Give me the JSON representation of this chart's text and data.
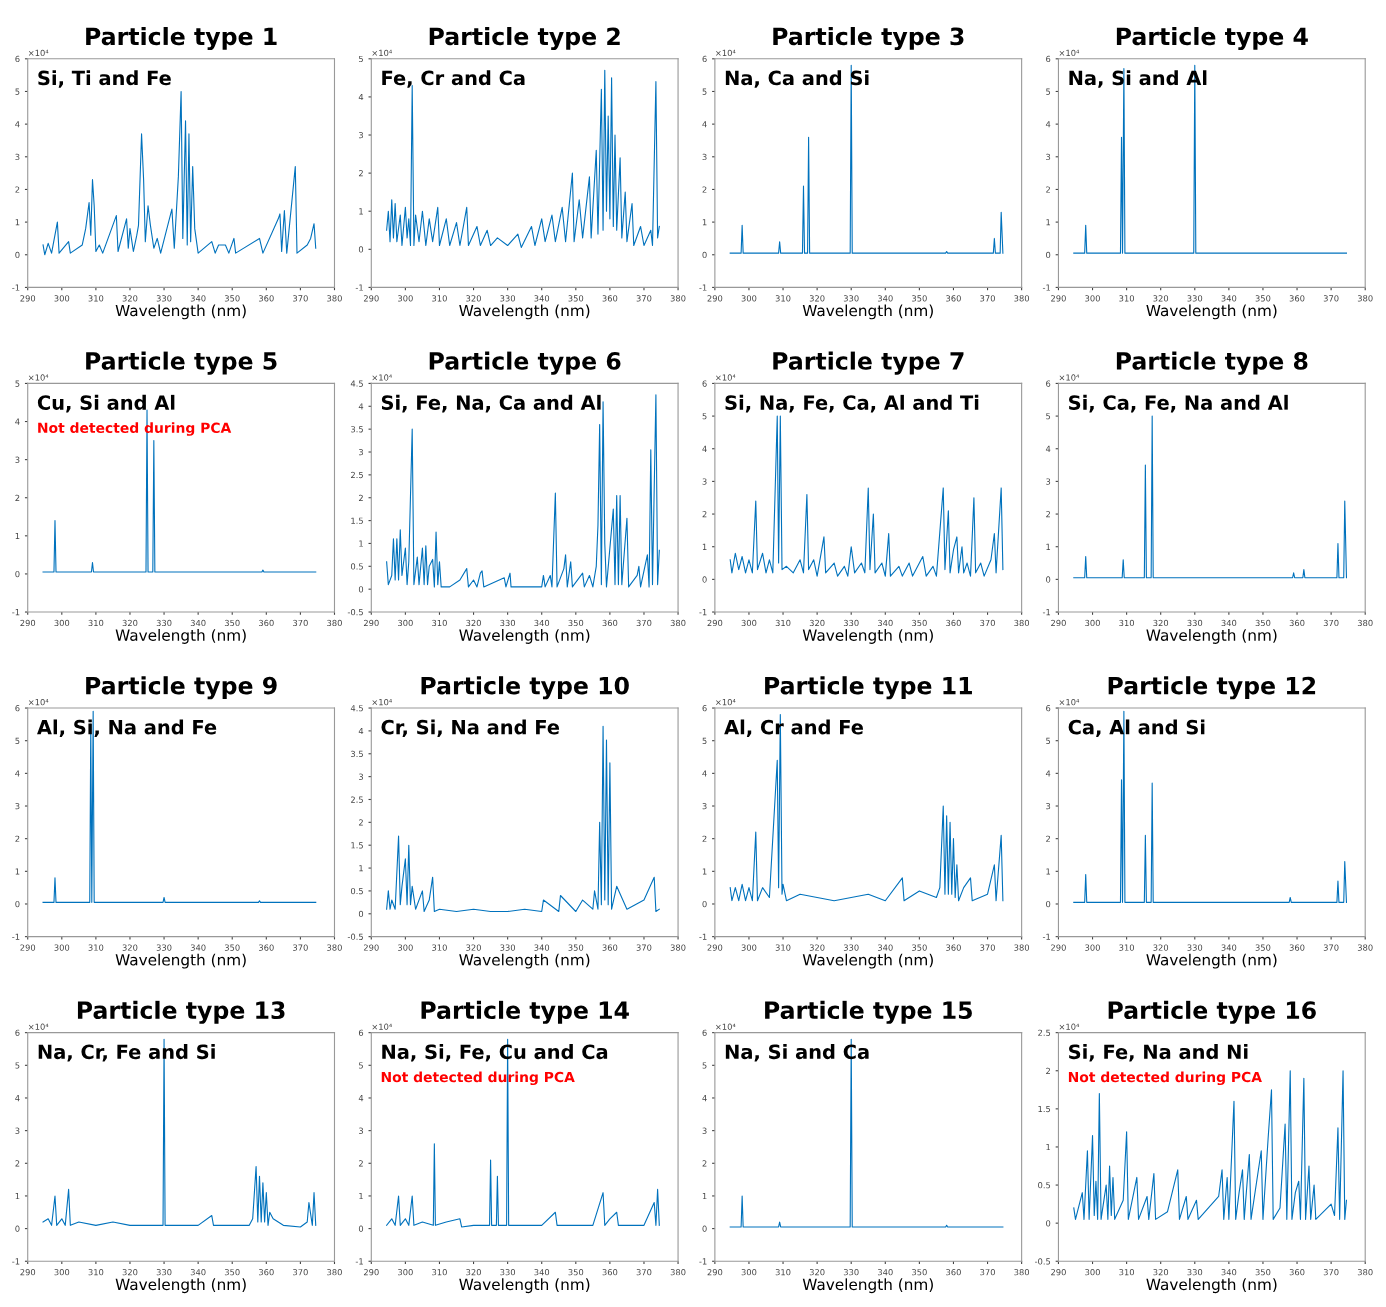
{
  "chart_data": [
    {
      "type": "line",
      "title": "Particle type 1",
      "subtitle": "Si, Ti and Fe",
      "xlabel": "Wavelength (nm)",
      "annotations": [
        "×10⁴"
      ],
      "color": "#0072bd",
      "xlim": [
        290,
        380
      ],
      "xticks": [
        290,
        300,
        310,
        320,
        330,
        340,
        350,
        360,
        370,
        380
      ],
      "ylim": [
        -1,
        6
      ],
      "yticks": [
        -1,
        0,
        1,
        2,
        3,
        4,
        5,
        6
      ],
      "grid": false,
      "legend": false,
      "x": [
        294.5,
        295,
        296,
        297,
        298.7,
        299.2,
        302,
        302.5,
        306,
        307,
        307.5,
        308,
        308.5,
        309,
        309.5,
        310,
        311,
        312,
        316,
        316.5,
        319,
        319.5,
        320,
        321,
        322,
        322.5,
        323.4,
        324,
        324.5,
        325.3,
        326,
        327,
        328,
        329,
        332.3,
        333,
        334.2,
        335,
        335.5,
        336.3,
        336.8,
        337.3,
        337.8,
        338.4,
        339,
        340,
        344,
        345,
        346,
        348,
        349,
        350.5,
        351,
        358,
        359,
        363.5,
        364,
        364.5,
        365.3,
        366,
        368.5,
        369,
        372,
        373,
        374,
        374.5
      ],
      "values": [
        0.3,
        0,
        0.35,
        0.05,
        1.0,
        0.05,
        0.4,
        0.05,
        0.3,
        0.8,
        1.2,
        1.6,
        0.6,
        2.3,
        1.5,
        0.1,
        0.3,
        0.05,
        1.2,
        0.1,
        1.1,
        0.2,
        0.8,
        0.1,
        0.6,
        0.9,
        3.7,
        2.3,
        0.4,
        1.5,
        0.9,
        0.2,
        0.5,
        0.05,
        1.4,
        0.2,
        2.4,
        5.0,
        0.5,
        4.1,
        0.3,
        3.7,
        0.4,
        2.7,
        0.8,
        0.05,
        0.4,
        0.05,
        0.3,
        0.3,
        0.05,
        0.5,
        0.05,
        0.5,
        0.05,
        1.1,
        1.25,
        0.1,
        1.35,
        0.05,
        2.7,
        0.05,
        0.3,
        0.5,
        0.95,
        0.2
      ]
    },
    {
      "type": "line",
      "title": "Particle type 2",
      "subtitle": "Fe, Cr and Ca",
      "xlabel": "Wavelength (nm)",
      "annotations": [
        "×10⁴"
      ],
      "color": "#0072bd",
      "xlim": [
        290,
        380
      ],
      "xticks": [
        290,
        300,
        310,
        320,
        330,
        340,
        350,
        360,
        370,
        380
      ],
      "ylim": [
        -1,
        5
      ],
      "yticks": [
        -1,
        0,
        1,
        2,
        3,
        4,
        5
      ],
      "grid": false,
      "legend": false,
      "x": [
        294.5,
        295,
        295.5,
        296,
        296.5,
        297,
        297.5,
        298.5,
        299,
        300,
        300.5,
        301,
        301.5,
        302,
        302.5,
        303,
        304,
        305,
        306,
        307,
        308,
        309.5,
        310,
        312,
        313,
        315,
        316,
        318,
        318.5,
        321,
        322,
        324,
        325,
        327,
        330,
        333,
        334,
        337,
        338,
        340,
        341,
        343,
        344,
        346,
        347,
        349,
        349.5,
        351,
        352,
        354,
        354.5,
        356,
        356.5,
        357.5,
        358,
        358.5,
        359,
        359.5,
        360,
        360.5,
        361,
        361.5,
        362,
        363,
        363.5,
        364.5,
        365,
        366.5,
        367,
        369,
        370,
        372,
        372.5,
        373.5,
        374,
        374.5
      ],
      "values": [
        0.5,
        1.0,
        0.2,
        1.3,
        0.3,
        1.2,
        0.2,
        0.9,
        0.1,
        1.1,
        0.3,
        0.8,
        0.1,
        4.3,
        0.1,
        0.9,
        0.2,
        1.0,
        0.1,
        0.8,
        0.2,
        1.1,
        0.1,
        0.8,
        0.1,
        0.7,
        0.1,
        1.1,
        0.1,
        0.6,
        0.1,
        0.5,
        0.1,
        0.3,
        0.1,
        0.4,
        0.05,
        0.6,
        0.1,
        0.8,
        0.2,
        0.9,
        0.2,
        1.1,
        0.2,
        2.0,
        0.2,
        1.3,
        0.3,
        1.9,
        0.3,
        2.6,
        0.4,
        4.2,
        0.5,
        4.7,
        1.0,
        3.5,
        0.8,
        4.5,
        0.6,
        3.0,
        0.5,
        2.4,
        0.3,
        1.5,
        0.2,
        1.2,
        0.1,
        0.6,
        0.1,
        0.5,
        0.1,
        4.4,
        0.3,
        0.6
      ]
    },
    {
      "type": "line",
      "title": "Particle type 3",
      "subtitle": "Na, Ca and Si",
      "xlabel": "Wavelength (nm)",
      "annotations": [
        "×10⁴"
      ],
      "color": "#0072bd",
      "xlim": [
        290,
        380
      ],
      "xticks": [
        290,
        300,
        310,
        320,
        330,
        340,
        350,
        360,
        370,
        380
      ],
      "ylim": [
        -1,
        6
      ],
      "yticks": [
        -1,
        0,
        1,
        2,
        3,
        4,
        5,
        6
      ],
      "grid": false,
      "legend": false,
      "x": [
        294.5,
        297.7,
        298,
        298.3,
        308.7,
        309,
        309.3,
        315.7,
        316,
        316.3,
        317.2,
        317.5,
        317.8,
        329.7,
        330,
        330.3,
        357.7,
        358,
        358.3,
        371.7,
        372,
        372.3,
        373.7,
        374,
        374.5
      ],
      "values": [
        0.05,
        0.05,
        0.9,
        0.05,
        0.05,
        0.4,
        0.05,
        0.05,
        2.1,
        0.05,
        0.05,
        3.6,
        0.05,
        0.05,
        5.8,
        0.05,
        0.05,
        0.1,
        0.05,
        0.05,
        0.5,
        0.05,
        0.05,
        1.3,
        0.05
      ]
    },
    {
      "type": "line",
      "title": "Particle type 4",
      "subtitle": "Na, Si and Al",
      "xlabel": "Wavelength (nm)",
      "annotations": [
        "×10⁴"
      ],
      "color": "#0072bd",
      "xlim": [
        290,
        380
      ],
      "xticks": [
        290,
        300,
        310,
        320,
        330,
        340,
        350,
        360,
        370,
        380
      ],
      "ylim": [
        -1,
        6
      ],
      "yticks": [
        -1,
        0,
        1,
        2,
        3,
        4,
        5,
        6
      ],
      "grid": false,
      "legend": false,
      "x": [
        294.5,
        297.7,
        298,
        298.3,
        308.2,
        308.5,
        308.8,
        309.2,
        309.5,
        329.7,
        330,
        330.3,
        374.5
      ],
      "values": [
        0.05,
        0.05,
        0.9,
        0.05,
        0.05,
        3.6,
        0.05,
        5.7,
        0.05,
        0.05,
        5.8,
        0.05,
        0.05
      ]
    },
    {
      "type": "line",
      "title": "Particle type 5",
      "subtitle": "Cu, Si and Al",
      "xlabel": "Wavelength (nm)",
      "annotations": [
        "×10⁴",
        "Not detected during PCA"
      ],
      "color": "#0072bd",
      "xlim": [
        290,
        380
      ],
      "xticks": [
        290,
        300,
        310,
        320,
        330,
        340,
        350,
        360,
        370,
        380
      ],
      "ylim": [
        -1,
        5
      ],
      "yticks": [
        -1,
        0,
        1,
        2,
        3,
        4,
        5
      ],
      "grid": false,
      "legend": false,
      "x": [
        294.5,
        297.7,
        298,
        298.3,
        308.7,
        309,
        309.3,
        324.7,
        325,
        325.3,
        326.7,
        327,
        327.3,
        358.7,
        359,
        359.3,
        374.5
      ],
      "values": [
        0.05,
        0.05,
        1.4,
        0.05,
        0.05,
        0.3,
        0.05,
        0.05,
        4.3,
        0.05,
        0.05,
        3.5,
        0.05,
        0.05,
        0.1,
        0.05,
        0.05
      ]
    },
    {
      "type": "line",
      "title": "Particle type 6",
      "subtitle": "Si, Fe, Na, Ca and Al",
      "xlabel": "Wavelength (nm)",
      "annotations": [
        "×10⁴"
      ],
      "color": "#0072bd",
      "xlim": [
        290,
        380
      ],
      "xticks": [
        290,
        300,
        310,
        320,
        330,
        340,
        350,
        360,
        370,
        380
      ],
      "ylim": [
        -0.5,
        4.5
      ],
      "yticks": [
        -0.5,
        0,
        0.5,
        1,
        1.5,
        2,
        2.5,
        3,
        3.5,
        4,
        4.5
      ],
      "grid": false,
      "legend": false,
      "x": [
        294.5,
        295,
        296,
        296.5,
        297,
        297.5,
        298,
        298.5,
        299,
        300,
        300.5,
        301,
        302,
        302.5,
        303.5,
        304,
        305,
        305.5,
        306,
        306.5,
        307,
        308,
        308.5,
        309,
        309.5,
        310,
        310.5,
        313,
        316,
        318,
        318.5,
        320,
        321,
        322,
        322.5,
        323,
        329,
        329.5,
        330.7,
        331,
        340,
        340.5,
        341,
        342.5,
        343,
        344,
        344.5,
        346.5,
        347,
        347.5,
        348.5,
        349,
        352,
        352.5,
        354,
        355,
        356,
        356.5,
        357,
        357.5,
        358,
        358.5,
        359,
        361,
        361.5,
        362,
        362.5,
        363,
        363.5,
        365,
        365.5,
        368,
        368.5,
        369,
        371,
        371.5,
        372,
        372.5,
        373.5,
        374,
        374.5
      ],
      "values": [
        0.6,
        0.1,
        0.3,
        1.1,
        0.2,
        1.1,
        0.2,
        1.3,
        0.3,
        0.9,
        0.1,
        0.6,
        3.5,
        0.1,
        0.7,
        0.1,
        0.9,
        0.1,
        0.95,
        0.1,
        0.5,
        0.65,
        0.05,
        1.25,
        0.1,
        0.6,
        0.05,
        0.05,
        0.2,
        0.45,
        0.05,
        0.2,
        0.05,
        0.35,
        0.4,
        0.05,
        0.25,
        0.05,
        0.35,
        0.05,
        0.05,
        0.3,
        0.05,
        0.3,
        0.05,
        2.1,
        0.05,
        0.45,
        0.75,
        0.05,
        0.6,
        0.05,
        0.35,
        0.05,
        0.3,
        0.05,
        0.5,
        1.4,
        3.6,
        0.1,
        4.1,
        1.0,
        0.05,
        1.75,
        0.1,
        2.05,
        0.1,
        2.05,
        0.1,
        1.55,
        0.05,
        0.3,
        0.5,
        0.05,
        0.75,
        0.05,
        3.05,
        0.1,
        4.25,
        0.1,
        0.85
      ]
    },
    {
      "type": "line",
      "title": "Particle type 7",
      "subtitle": "Si, Na, Fe, Ca, Al and Ti",
      "xlabel": "Wavelength (nm)",
      "annotations": [
        "×10⁴"
      ],
      "color": "#0072bd",
      "xlim": [
        290,
        380
      ],
      "xticks": [
        290,
        300,
        310,
        320,
        330,
        340,
        350,
        360,
        370,
        380
      ],
      "ylim": [
        -1,
        6
      ],
      "yticks": [
        -1,
        0,
        1,
        2,
        3,
        4,
        5,
        6
      ],
      "grid": false,
      "legend": false,
      "x": [
        294.5,
        295,
        296,
        297,
        298,
        299,
        300,
        301,
        302,
        302.5,
        304,
        305,
        306,
        307,
        308.3,
        308.7,
        309.2,
        309.7,
        311,
        313,
        315,
        316,
        317,
        317.5,
        319,
        320,
        322,
        322.5,
        325,
        326,
        328,
        329,
        330,
        331,
        333,
        334,
        335,
        335.5,
        336.5,
        337,
        339,
        340,
        341,
        341.5,
        344,
        345,
        347,
        348,
        351,
        352,
        354,
        355,
        357,
        357.5,
        358.5,
        359,
        360,
        361,
        361.5,
        362.5,
        363,
        364,
        365,
        366,
        366.5,
        368,
        369,
        371,
        372,
        372.5,
        374,
        374.5
      ],
      "values": [
        0.6,
        0.2,
        0.8,
        0.3,
        0.7,
        0.2,
        0.6,
        0.2,
        2.4,
        0.3,
        0.8,
        0.2,
        0.6,
        0.2,
        5.0,
        0.5,
        5.0,
        0.3,
        0.4,
        0.2,
        0.6,
        0.2,
        2.6,
        0.3,
        0.6,
        0.1,
        1.3,
        0.2,
        0.5,
        0.1,
        0.4,
        0.1,
        1.0,
        0.2,
        0.5,
        0.2,
        2.8,
        0.3,
        2.0,
        0.2,
        0.5,
        0.1,
        1.4,
        0.1,
        0.4,
        0.1,
        0.5,
        0.1,
        0.7,
        0.1,
        0.4,
        0.1,
        2.8,
        0.3,
        2.1,
        0.2,
        0.9,
        1.3,
        0.2,
        1.0,
        0.2,
        0.5,
        0.1,
        2.5,
        0.2,
        0.5,
        0.1,
        0.6,
        1.4,
        0.2,
        2.8,
        0.3
      ]
    },
    {
      "type": "line",
      "title": "Particle type 8",
      "subtitle": "Si, Ca, Fe, Na and Al",
      "xlabel": "Wavelength (nm)",
      "annotations": [
        "×10⁴"
      ],
      "color": "#0072bd",
      "xlim": [
        290,
        380
      ],
      "xticks": [
        290,
        300,
        310,
        320,
        330,
        340,
        350,
        360,
        370,
        380
      ],
      "ylim": [
        -1,
        6
      ],
      "yticks": [
        -1,
        0,
        1,
        2,
        3,
        4,
        5,
        6
      ],
      "grid": false,
      "legend": false,
      "x": [
        294.5,
        297.7,
        298,
        298.3,
        308.7,
        309,
        309.3,
        315.2,
        315.5,
        315.8,
        317.2,
        317.5,
        317.8,
        358.7,
        359,
        359.3,
        361.7,
        362,
        362.3,
        371.7,
        372,
        372.3,
        373.7,
        374,
        374.5
      ],
      "values": [
        0.05,
        0.05,
        0.7,
        0.05,
        0.05,
        0.6,
        0.05,
        0.05,
        3.5,
        0.05,
        0.05,
        5.0,
        0.05,
        0.05,
        0.2,
        0.05,
        0.05,
        0.3,
        0.05,
        0.05,
        1.1,
        0.05,
        0.05,
        2.4,
        0.05
      ]
    },
    {
      "type": "line",
      "title": "Particle type 9",
      "subtitle": "Al, Si, Na and Fe",
      "xlabel": "Wavelength (nm)",
      "annotations": [
        "×10⁴"
      ],
      "color": "#0072bd",
      "xlim": [
        290,
        380
      ],
      "xticks": [
        290,
        300,
        310,
        320,
        330,
        340,
        350,
        360,
        370,
        380
      ],
      "ylim": [
        -1,
        6
      ],
      "yticks": [
        -1,
        0,
        1,
        2,
        3,
        4,
        5,
        6
      ],
      "grid": false,
      "legend": false,
      "x": [
        294.5,
        297.7,
        298,
        298.3,
        308.2,
        308.5,
        308.8,
        309.2,
        309.5,
        329.7,
        330,
        330.3,
        357.7,
        358,
        358.3,
        374.5
      ],
      "values": [
        0.05,
        0.05,
        0.8,
        0.05,
        0.05,
        5.5,
        0.05,
        5.9,
        0.05,
        0.05,
        0.2,
        0.05,
        0.05,
        0.1,
        0.05,
        0.05
      ]
    },
    {
      "type": "line",
      "title": "Particle type 10",
      "subtitle": "Cr, Si, Na and Fe",
      "xlabel": "Wavelength (nm)",
      "annotations": [
        "×10⁴"
      ],
      "color": "#0072bd",
      "xlim": [
        290,
        380
      ],
      "xticks": [
        290,
        300,
        310,
        320,
        330,
        340,
        350,
        360,
        370,
        380
      ],
      "ylim": [
        -0.5,
        4.5
      ],
      "yticks": [
        -0.5,
        0,
        0.5,
        1,
        1.5,
        2,
        2.5,
        3,
        3.5,
        4,
        4.5
      ],
      "grid": false,
      "legend": false,
      "x": [
        294.5,
        295,
        295.5,
        296,
        297,
        298,
        298.5,
        299,
        300,
        300.5,
        301,
        301.5,
        302,
        303,
        305,
        305.5,
        307,
        308,
        308.5,
        310,
        315,
        320,
        325,
        330,
        335,
        340,
        340.5,
        345,
        345.5,
        350,
        352,
        355,
        355.5,
        356.5,
        357,
        357.5,
        358,
        358.5,
        359,
        359.5,
        360,
        360.5,
        362,
        365,
        370,
        373,
        373.5,
        374.5
      ],
      "values": [
        0.1,
        0.5,
        0.1,
        0.3,
        0.1,
        1.7,
        0.2,
        0.6,
        1.2,
        0.2,
        1.5,
        0.2,
        0.6,
        0.1,
        0.5,
        0.05,
        0.3,
        0.8,
        0.05,
        0.1,
        0.05,
        0.1,
        0.05,
        0.05,
        0.1,
        0.05,
        0.3,
        0.05,
        0.4,
        0.05,
        0.3,
        0.1,
        0.5,
        0.1,
        2.0,
        0.2,
        4.1,
        0.3,
        3.8,
        0.2,
        3.3,
        0.1,
        0.6,
        0.1,
        0.3,
        0.8,
        0.05,
        0.1
      ]
    },
    {
      "type": "line",
      "title": "Particle type 11",
      "subtitle": "Al, Cr and Fe",
      "xlabel": "Wavelength (nm)",
      "annotations": [
        "×10⁴"
      ],
      "color": "#0072bd",
      "xlim": [
        290,
        380
      ],
      "xticks": [
        290,
        300,
        310,
        320,
        330,
        340,
        350,
        360,
        370,
        380
      ],
      "ylim": [
        -1,
        6
      ],
      "yticks": [
        -1,
        0,
        1,
        2,
        3,
        4,
        5,
        6
      ],
      "grid": false,
      "legend": false,
      "x": [
        294.5,
        295,
        296,
        297,
        298,
        299,
        300,
        301,
        302,
        302.5,
        304,
        306,
        308.3,
        308.7,
        309.2,
        309.7,
        310,
        311,
        315,
        320,
        325,
        330,
        335,
        340,
        345,
        345.5,
        350,
        355,
        356,
        357,
        357.5,
        358,
        358.5,
        359,
        359.5,
        360,
        360.5,
        361,
        361.5,
        363,
        365,
        365.5,
        370,
        372,
        372.5,
        374,
        374.5
      ],
      "values": [
        0.5,
        0.1,
        0.5,
        0.1,
        0.6,
        0.1,
        0.5,
        0.1,
        2.2,
        0.1,
        0.5,
        0.2,
        4.4,
        0.5,
        5.8,
        0.3,
        0.6,
        0.1,
        0.3,
        0.2,
        0.1,
        0.2,
        0.3,
        0.1,
        0.8,
        0.1,
        0.4,
        0.2,
        0.5,
        3.0,
        0.3,
        2.7,
        0.3,
        2.5,
        0.3,
        2.0,
        0.2,
        1.2,
        0.1,
        0.5,
        0.8,
        0.1,
        0.3,
        1.2,
        0.1,
        2.1,
        0.1
      ]
    },
    {
      "type": "line",
      "title": "Particle type 12",
      "subtitle": "Ca, Al and Si",
      "xlabel": "Wavelength (nm)",
      "annotations": [
        "×10⁴"
      ],
      "color": "#0072bd",
      "xlim": [
        290,
        380
      ],
      "xticks": [
        290,
        300,
        310,
        320,
        330,
        340,
        350,
        360,
        370,
        380
      ],
      "ylim": [
        -1,
        6
      ],
      "yticks": [
        -1,
        0,
        1,
        2,
        3,
        4,
        5,
        6
      ],
      "grid": false,
      "legend": false,
      "x": [
        294.5,
        297.7,
        298,
        298.3,
        308.2,
        308.5,
        308.8,
        309.2,
        309.5,
        315.2,
        315.5,
        315.8,
        317.2,
        317.5,
        317.8,
        357.7,
        358,
        358.3,
        371.7,
        372,
        372.3,
        373.7,
        374,
        374.5
      ],
      "values": [
        0.05,
        0.05,
        0.9,
        0.05,
        0.05,
        3.8,
        0.05,
        5.9,
        0.05,
        0.05,
        2.1,
        0.05,
        0.05,
        3.7,
        0.05,
        0.05,
        0.2,
        0.05,
        0.05,
        0.7,
        0.05,
        0.05,
        1.3,
        0.05
      ]
    },
    {
      "type": "line",
      "title": "Particle type 13",
      "subtitle": "Na, Cr, Fe and Si",
      "xlabel": "Wavelength (nm)",
      "annotations": [
        "×10⁴"
      ],
      "color": "#0072bd",
      "xlim": [
        290,
        380
      ],
      "xticks": [
        290,
        300,
        310,
        320,
        330,
        340,
        350,
        360,
        370,
        380
      ],
      "ylim": [
        -1,
        6
      ],
      "yticks": [
        -1,
        0,
        1,
        2,
        3,
        4,
        5,
        6
      ],
      "grid": false,
      "legend": false,
      "x": [
        294.5,
        296,
        297,
        298,
        298.5,
        300,
        301,
        302,
        302.5,
        305,
        310,
        315,
        320,
        325,
        329.7,
        330,
        330.3,
        335,
        340,
        344,
        344.5,
        350,
        355,
        356,
        357,
        357.5,
        358,
        358.5,
        359,
        359.5,
        360,
        360.5,
        361,
        362,
        365,
        370,
        372,
        372.5,
        373.5,
        374,
        374.5
      ],
      "values": [
        0.2,
        0.3,
        0.1,
        1.0,
        0.1,
        0.3,
        0.1,
        1.2,
        0.1,
        0.2,
        0.1,
        0.2,
        0.1,
        0.1,
        0.1,
        5.8,
        0.1,
        0.1,
        0.1,
        0.4,
        0.1,
        0.1,
        0.1,
        0.3,
        1.9,
        0.2,
        1.6,
        0.2,
        1.4,
        0.2,
        1.1,
        0.1,
        0.5,
        0.3,
        0.1,
        0.05,
        0.2,
        0.8,
        0.1,
        1.1,
        0.1
      ]
    },
    {
      "type": "line",
      "title": "Particle type 14",
      "subtitle": "Na, Si, Fe, Cu and Ca",
      "xlabel": "Wavelength (nm)",
      "annotations": [
        "×10⁴",
        "Not detected during PCA"
      ],
      "color": "#0072bd",
      "xlim": [
        290,
        380
      ],
      "xticks": [
        290,
        300,
        310,
        320,
        330,
        340,
        350,
        360,
        370,
        380
      ],
      "ylim": [
        -1,
        6
      ],
      "yticks": [
        -1,
        0,
        1,
        2,
        3,
        4,
        5,
        6
      ],
      "grid": false,
      "legend": false,
      "x": [
        294.5,
        296,
        297,
        298,
        298.5,
        300,
        301,
        302,
        302.5,
        305,
        308.2,
        308.5,
        308.8,
        312,
        316,
        316.5,
        320,
        324.7,
        325,
        325.3,
        326.7,
        327,
        327.3,
        329.7,
        330,
        330.3,
        335,
        340,
        344,
        344.5,
        350,
        355,
        358,
        358.5,
        360,
        362,
        362.5,
        365,
        370,
        373,
        373.5,
        374,
        374.5
      ],
      "values": [
        0.1,
        0.3,
        0.1,
        1.0,
        0.1,
        0.3,
        0.1,
        1.0,
        0.1,
        0.2,
        0.1,
        2.6,
        0.1,
        0.2,
        0.3,
        0.05,
        0.1,
        0.1,
        2.1,
        0.1,
        0.1,
        1.6,
        0.1,
        0.1,
        5.8,
        0.1,
        0.1,
        0.1,
        0.5,
        0.1,
        0.1,
        0.1,
        1.1,
        0.1,
        0.3,
        0.5,
        0.1,
        0.1,
        0.1,
        0.8,
        0.1,
        1.2,
        0.1
      ]
    },
    {
      "type": "line",
      "title": "Particle type 15",
      "subtitle": "Na, Si and Ca",
      "xlabel": "Wavelength (nm)",
      "annotations": [
        "×10⁴"
      ],
      "color": "#0072bd",
      "xlim": [
        290,
        380
      ],
      "xticks": [
        290,
        300,
        310,
        320,
        330,
        340,
        350,
        360,
        370,
        380
      ],
      "ylim": [
        -1,
        6
      ],
      "yticks": [
        -1,
        0,
        1,
        2,
        3,
        4,
        5,
        6
      ],
      "grid": false,
      "legend": false,
      "x": [
        294.5,
        297.7,
        298,
        298.3,
        308.7,
        309,
        309.3,
        329.7,
        330,
        330.3,
        357.7,
        358,
        358.3,
        374.5
      ],
      "values": [
        0.05,
        0.05,
        1.0,
        0.05,
        0.05,
        0.2,
        0.05,
        0.05,
        5.8,
        0.05,
        0.05,
        0.1,
        0.05,
        0.05
      ]
    },
    {
      "type": "line",
      "title": "Particle type 16",
      "subtitle": "Si, Fe, Na and Ni",
      "xlabel": "Wavelength (nm)",
      "annotations": [
        "×10⁴",
        "Not detected during PCA"
      ],
      "color": "#0072bd",
      "xlim": [
        290,
        380
      ],
      "xticks": [
        290,
        300,
        310,
        320,
        330,
        340,
        350,
        360,
        370,
        380
      ],
      "ylim": [
        -0.5,
        2.5
      ],
      "yticks": [
        -0.5,
        0,
        0.5,
        1,
        1.5,
        2,
        2.5
      ],
      "grid": false,
      "legend": false,
      "x": [
        294.5,
        295,
        297,
        297.5,
        298.5,
        299,
        300,
        300.5,
        301,
        301.5,
        302,
        302.5,
        304,
        304.5,
        305,
        305.5,
        306,
        306.5,
        309,
        310,
        310.5,
        313,
        313.5,
        316,
        316.5,
        318,
        318.5,
        322,
        325,
        325.5,
        327.5,
        328,
        330.5,
        331,
        337,
        338,
        338.5,
        339.5,
        340,
        341.5,
        342,
        343,
        344,
        344.5,
        346,
        346.5,
        349.5,
        350,
        351.5,
        352.5,
        353,
        355,
        356.5,
        357,
        358,
        358.5,
        359.5,
        360.5,
        361,
        362,
        362.5,
        363.5,
        364,
        365,
        365.5,
        370,
        371,
        372,
        372.5,
        373.5,
        374,
        374.5
      ],
      "values": [
        0.2,
        0.05,
        0.4,
        0.05,
        0.95,
        0.05,
        1.15,
        0.1,
        0.55,
        0.05,
        1.7,
        0.05,
        0.5,
        0.05,
        0.75,
        0.1,
        0.6,
        0.05,
        0.3,
        1.2,
        0.05,
        0.6,
        0.05,
        0.35,
        0.05,
        0.65,
        0.05,
        0.15,
        0.7,
        0.05,
        0.35,
        0.05,
        0.3,
        0.05,
        0.35,
        0.7,
        0.05,
        0.6,
        0.05,
        1.6,
        0.05,
        0.4,
        0.7,
        0.05,
        0.9,
        0.05,
        0.95,
        0.05,
        1.1,
        1.75,
        0.05,
        0.2,
        1.3,
        0.05,
        2.0,
        0.05,
        0.4,
        0.55,
        0.05,
        1.9,
        0.05,
        0.75,
        0.05,
        0.5,
        0.05,
        0.25,
        0.1,
        1.25,
        0.05,
        2.0,
        0.05,
        0.3
      ]
    }
  ]
}
